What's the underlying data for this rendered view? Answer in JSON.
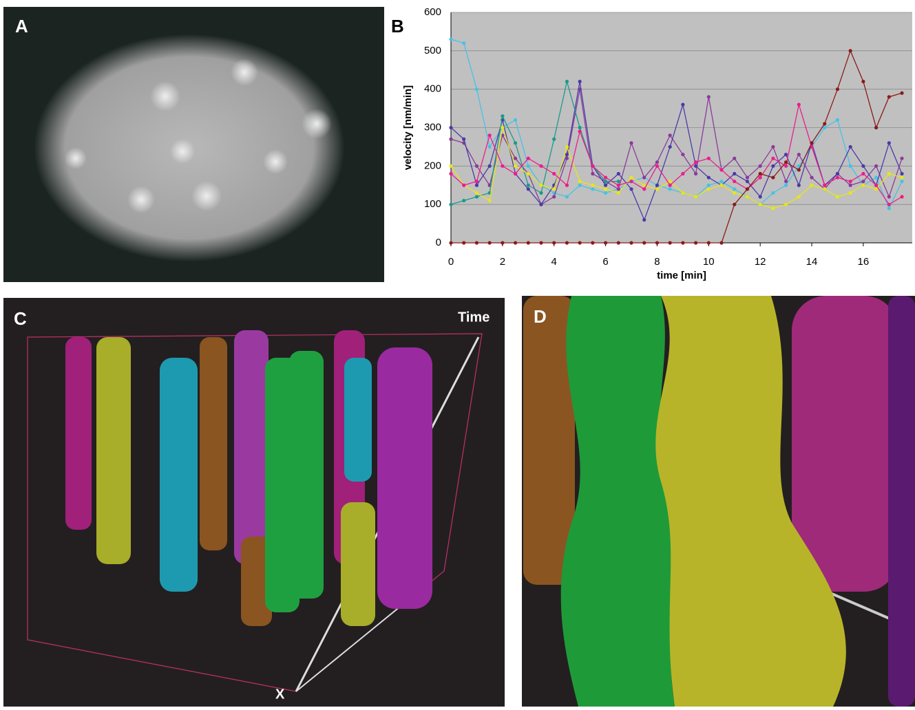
{
  "panel_labels": [
    "A",
    "B",
    "C",
    "D"
  ],
  "axis_labels_3d": {
    "time": "Time",
    "x": "X"
  },
  "chart_data": {
    "type": "line",
    "x_label": "time [min]",
    "y_label": "velocity [nm/min]",
    "x": [
      0,
      0.5,
      1,
      1.5,
      2,
      2.5,
      3,
      3.5,
      4,
      4.5,
      5,
      5.5,
      6,
      6.5,
      7,
      7.5,
      8,
      8.5,
      9,
      9.5,
      10,
      10.5,
      11,
      11.5,
      12,
      12.5,
      13,
      13.5,
      14,
      14.5,
      15,
      15.5,
      16,
      16.5,
      17,
      17.5
    ],
    "xlim": [
      0,
      17.9
    ],
    "xticks": [
      0,
      2,
      4,
      6,
      8,
      10,
      12,
      14,
      16
    ],
    "ylim": [
      0,
      600
    ],
    "yticks": [
      0,
      100,
      200,
      300,
      400,
      500,
      600
    ],
    "grid": true,
    "series": [
      {
        "color": "#45c2e6",
        "values": [
          530,
          520,
          400,
          250,
          300,
          320,
          200,
          150,
          130,
          120,
          150,
          140,
          130,
          140,
          160,
          170,
          150,
          140,
          130,
          120,
          150,
          160,
          140,
          120,
          100,
          130,
          150,
          200,
          250,
          300,
          320,
          200,
          150,
          170,
          90,
          160
        ]
      },
      {
        "color": "#8b3a9a",
        "values": [
          270,
          260,
          200,
          150,
          280,
          220,
          180,
          100,
          120,
          220,
          400,
          180,
          160,
          140,
          260,
          170,
          210,
          280,
          230,
          180,
          380,
          190,
          220,
          170,
          200,
          250,
          160,
          230,
          170,
          140,
          180,
          150,
          160,
          200,
          120,
          220
        ]
      },
      {
        "color": "#4b3aa8",
        "values": [
          300,
          270,
          150,
          200,
          320,
          180,
          140,
          100,
          150,
          230,
          420,
          200,
          150,
          180,
          140,
          60,
          150,
          250,
          360,
          200,
          170,
          150,
          180,
          160,
          120,
          200,
          230,
          150,
          260,
          150,
          180,
          250,
          200,
          150,
          260,
          180
        ]
      },
      {
        "color": "#1a9a8a",
        "values": [
          100,
          110,
          120,
          130,
          330,
          260,
          150,
          130,
          270,
          420,
          300,
          200,
          160,
          160,
          null,
          null,
          null,
          null,
          null,
          null,
          null,
          null,
          null,
          null,
          null,
          null,
          null,
          null,
          null,
          null,
          null,
          null,
          null,
          null,
          null,
          null
        ]
      },
      {
        "color": "#e6e61a",
        "values": [
          200,
          150,
          130,
          110,
          300,
          200,
          180,
          150,
          140,
          250,
          160,
          150,
          140,
          130,
          170,
          150,
          140,
          160,
          130,
          120,
          140,
          150,
          130,
          120,
          100,
          90,
          100,
          120,
          150,
          140,
          120,
          130,
          150,
          140,
          180,
          170
        ]
      },
      {
        "color": "#ec1c8c",
        "values": [
          180,
          150,
          160,
          280,
          200,
          180,
          220,
          200,
          180,
          150,
          290,
          200,
          170,
          150,
          160,
          140,
          200,
          150,
          180,
          210,
          220,
          190,
          160,
          140,
          170,
          220,
          200,
          360,
          250,
          150,
          170,
          160,
          180,
          150,
          100,
          120
        ]
      },
      {
        "color": "#8b1a1a",
        "values": [
          0,
          0,
          0,
          0,
          0,
          0,
          0,
          0,
          0,
          0,
          0,
          0,
          0,
          0,
          0,
          0,
          0,
          0,
          0,
          0,
          0,
          0,
          100,
          140,
          180,
          170,
          210,
          190,
          260,
          310,
          400,
          500,
          420,
          300,
          380,
          390
        ]
      }
    ]
  }
}
